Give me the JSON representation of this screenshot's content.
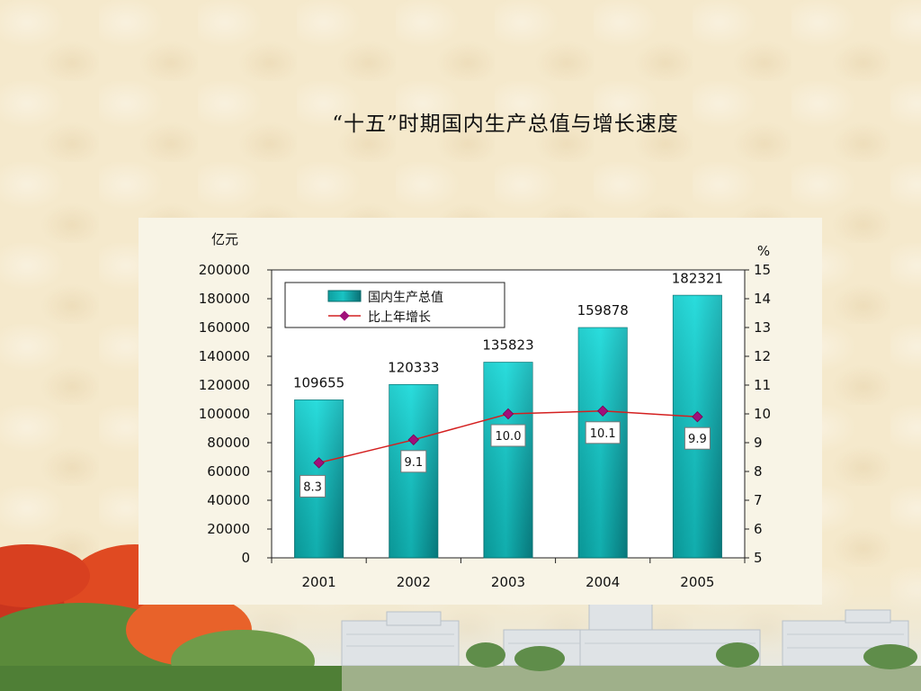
{
  "page": {
    "title": "“十五”时期国内生产总值与增长速度"
  },
  "chart_data": {
    "type": "bar",
    "title": "",
    "categories": [
      "2001",
      "2002",
      "2003",
      "2004",
      "2005"
    ],
    "series": [
      {
        "name": "国内生产总值",
        "type": "bar",
        "axis": "left",
        "values": [
          109655,
          120333,
          135823,
          159878,
          182321
        ],
        "labels": [
          "109655",
          "120333",
          "135823",
          "159878",
          "182321"
        ],
        "color": "#19c3c3"
      },
      {
        "name": "比上年增长",
        "type": "line",
        "axis": "right",
        "values": [
          8.3,
          9.1,
          10.0,
          10.1,
          9.9
        ],
        "labels": [
          "8.3",
          "9.1",
          "10.0",
          "10.1",
          "9.9"
        ],
        "color": "#d42020",
        "marker_color": "#a0107a"
      }
    ],
    "y_left": {
      "unit": "亿元",
      "ylim": [
        0,
        200000
      ],
      "ticks": [
        "0",
        "20000",
        "40000",
        "60000",
        "80000",
        "100000",
        "120000",
        "140000",
        "160000",
        "180000",
        "200000"
      ]
    },
    "y_right": {
      "unit": "%",
      "ylim": [
        5,
        15
      ],
      "ticks": [
        "5",
        "6",
        "7",
        "8",
        "9",
        "10",
        "11",
        "12",
        "13",
        "14",
        "15"
      ]
    },
    "grid": false,
    "legend": "top-left"
  }
}
